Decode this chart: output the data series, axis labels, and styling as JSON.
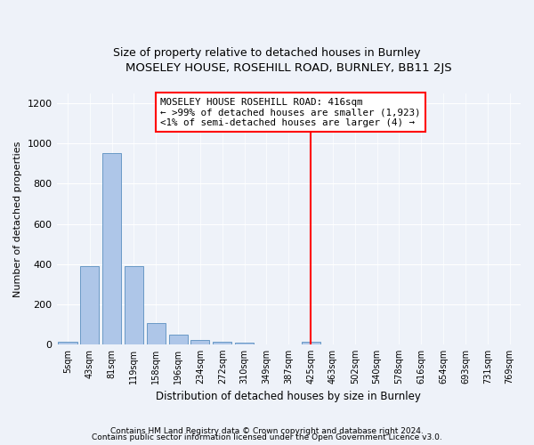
{
  "title1": "MOSELEY HOUSE, ROSEHILL ROAD, BURNLEY, BB11 2JS",
  "title2": "Size of property relative to detached houses in Burnley",
  "xlabel": "Distribution of detached houses by size in Burnley",
  "ylabel": "Number of detached properties",
  "categories": [
    "5sqm",
    "43sqm",
    "81sqm",
    "119sqm",
    "158sqm",
    "196sqm",
    "234sqm",
    "272sqm",
    "310sqm",
    "349sqm",
    "387sqm",
    "425sqm",
    "463sqm",
    "502sqm",
    "540sqm",
    "578sqm",
    "616sqm",
    "654sqm",
    "693sqm",
    "731sqm",
    "769sqm"
  ],
  "values": [
    13,
    390,
    955,
    390,
    105,
    50,
    20,
    14,
    10,
    0,
    0,
    12,
    0,
    0,
    0,
    0,
    0,
    0,
    0,
    0,
    0
  ],
  "bar_color": "#aec6e8",
  "bar_edge_color": "#5a8fc0",
  "vline_x_index": 11,
  "vline_color": "red",
  "annotation_text": "MOSELEY HOUSE ROSEHILL ROAD: 416sqm\n← >99% of detached houses are smaller (1,923)\n<1% of semi-detached houses are larger (4) →",
  "annotation_box_color": "white",
  "annotation_box_edge_color": "red",
  "ylim": [
    0,
    1250
  ],
  "yticks": [
    0,
    200,
    400,
    600,
    800,
    1000,
    1200
  ],
  "footer1": "Contains HM Land Registry data © Crown copyright and database right 2024.",
  "footer2": "Contains public sector information licensed under the Open Government Licence v3.0.",
  "bg_color": "#eef2f9",
  "grid_color": "#ffffff",
  "title_fontsize": 9.5,
  "subtitle_fontsize": 9
}
